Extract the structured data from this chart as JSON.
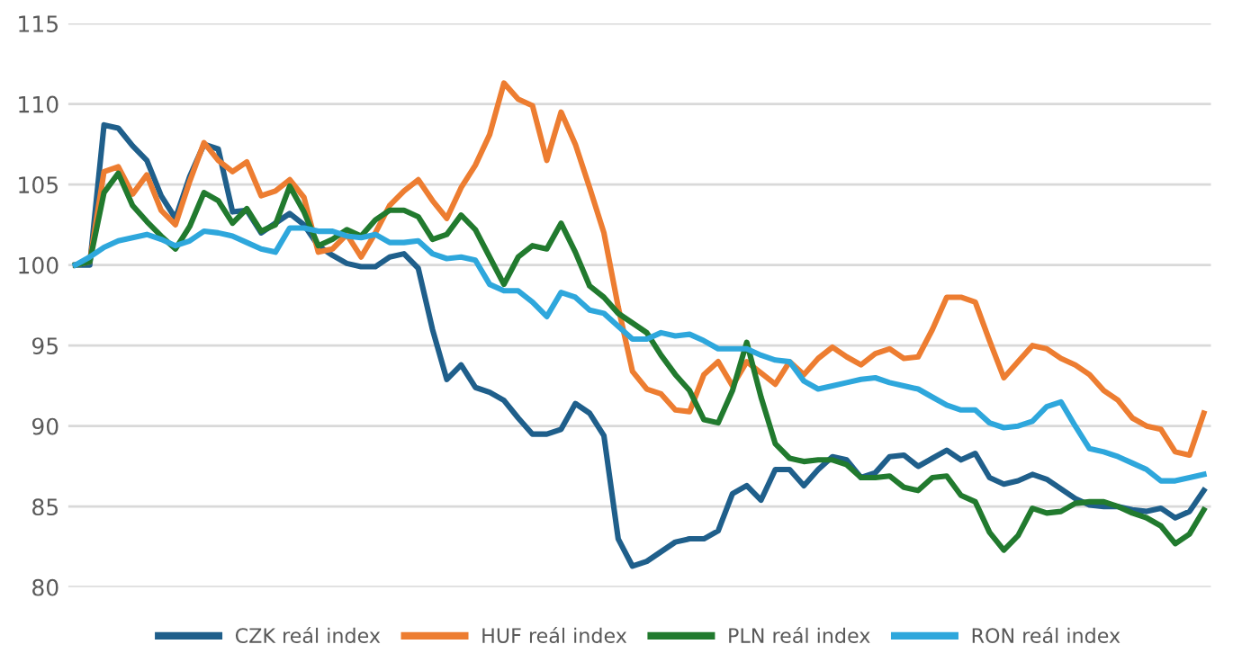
{
  "chart_data": {
    "type": "line",
    "categories": [
      null,
      null,
      null,
      null,
      null,
      null,
      null,
      null,
      null,
      null,
      null,
      null,
      null,
      null,
      null,
      null,
      null,
      null,
      null,
      null,
      null,
      null,
      null,
      null,
      null,
      null,
      null,
      null,
      null,
      null,
      null,
      null,
      null,
      null,
      null,
      null,
      null,
      null,
      null,
      null,
      null,
      null,
      null,
      null,
      null,
      null,
      null,
      null,
      null,
      null,
      null,
      null,
      null,
      null,
      null,
      null,
      null,
      null,
      null,
      null,
      null,
      null,
      null,
      null,
      null,
      null,
      null,
      null,
      null,
      null,
      null,
      null,
      null,
      null,
      null,
      null,
      null,
      null,
      null,
      null
    ],
    "series": [
      {
        "name": "CZK reál index",
        "color": "#1f5f8b",
        "values": [
          100,
          100,
          108.7,
          108.5,
          107.4,
          106.5,
          104.3,
          102.9,
          105.5,
          107.5,
          107.2,
          103.3,
          103.4,
          102.0,
          102.6,
          103.2,
          102.5,
          101.2,
          100.6,
          100.1,
          99.9,
          99.9,
          100.5,
          100.7,
          99.8,
          96.0,
          92.9,
          93.8,
          92.4,
          92.1,
          91.6,
          90.5,
          89.5,
          89.5,
          89.8,
          91.4,
          90.8,
          89.4,
          83.0,
          81.3,
          81.6,
          82.2,
          82.8,
          83.0,
          83.0,
          83.5,
          85.8,
          86.3,
          85.4,
          87.3,
          87.3,
          86.3,
          87.3,
          88.1,
          87.9,
          86.8,
          87.1,
          88.1,
          88.2,
          87.5,
          88.0,
          88.5,
          87.9,
          88.3,
          86.8,
          86.4,
          86.6,
          87.0,
          86.7,
          86.1,
          85.5,
          85.1,
          85.0,
          85.0,
          84.8,
          84.7,
          84.9,
          84.3,
          84.7,
          86.0
        ]
      },
      {
        "name": "HUF reál index",
        "color": "#ed7d31",
        "values": [
          100,
          100.2,
          105.8,
          106.1,
          104.4,
          105.6,
          103.4,
          102.5,
          105.2,
          107.6,
          106.5,
          105.8,
          106.4,
          104.3,
          104.6,
          105.3,
          104.2,
          100.8,
          101.0,
          101.9,
          100.5,
          102.0,
          103.7,
          104.6,
          105.3,
          104.0,
          102.9,
          104.8,
          106.2,
          108.1,
          111.3,
          110.3,
          109.9,
          106.5,
          109.5,
          107.5,
          104.8,
          102.0,
          97.4,
          93.4,
          92.3,
          92.0,
          91.0,
          90.9,
          93.2,
          94.0,
          92.5,
          94.0,
          93.3,
          92.6,
          94.0,
          93.2,
          94.2,
          94.9,
          94.3,
          93.8,
          94.5,
          94.8,
          94.2,
          94.3,
          96.0,
          98.0,
          98.0,
          97.7,
          95.3,
          93.0,
          94.0,
          95.0,
          94.8,
          94.2,
          93.8,
          93.2,
          92.2,
          91.6,
          90.5,
          90.0,
          89.8,
          88.4,
          88.2,
          90.8
        ]
      },
      {
        "name": "PLN reál index",
        "color": "#217a2e",
        "values": [
          100,
          100.2,
          104.5,
          105.7,
          103.7,
          102.7,
          101.8,
          101.0,
          102.4,
          104.5,
          104.0,
          102.6,
          103.5,
          102.1,
          102.5,
          104.9,
          103.3,
          101.2,
          101.6,
          102.2,
          101.8,
          102.8,
          103.4,
          103.4,
          103.0,
          101.6,
          101.9,
          103.1,
          102.2,
          100.5,
          98.8,
          100.5,
          101.2,
          101.0,
          102.6,
          100.8,
          98.7,
          98.0,
          97.0,
          96.4,
          95.8,
          94.4,
          93.2,
          92.2,
          90.4,
          90.2,
          92.2,
          95.2,
          91.8,
          88.9,
          88.0,
          87.8,
          87.9,
          87.9,
          87.6,
          86.8,
          86.8,
          86.9,
          86.2,
          86.0,
          86.8,
          86.9,
          85.7,
          85.3,
          83.4,
          82.3,
          83.2,
          84.9,
          84.6,
          84.7,
          85.2,
          85.3,
          85.3,
          85.0,
          84.6,
          84.3,
          83.8,
          82.7,
          83.3,
          84.8
        ]
      },
      {
        "name": "RON reál index",
        "color": "#2ea7dc",
        "values": [
          100.0,
          100.5,
          101.1,
          101.5,
          101.7,
          101.9,
          101.6,
          101.2,
          101.5,
          102.1,
          102.0,
          101.8,
          101.4,
          101.0,
          100.8,
          102.3,
          102.3,
          102.1,
          102.1,
          101.8,
          101.7,
          101.9,
          101.4,
          101.4,
          101.5,
          100.7,
          100.4,
          100.5,
          100.3,
          98.8,
          98.4,
          98.4,
          97.7,
          96.8,
          98.3,
          98.0,
          97.2,
          97.0,
          96.2,
          95.4,
          95.4,
          95.8,
          95.6,
          95.7,
          95.3,
          94.8,
          94.8,
          94.8,
          94.4,
          94.1,
          94.0,
          92.8,
          92.3,
          92.5,
          92.7,
          92.9,
          93.0,
          92.7,
          92.5,
          92.3,
          91.8,
          91.3,
          91.0,
          91.0,
          90.2,
          89.9,
          90.0,
          90.3,
          91.2,
          91.5,
          90.0,
          88.6,
          88.4,
          88.1,
          87.7,
          87.3,
          86.6,
          86.6,
          86.8,
          87.0
        ]
      }
    ],
    "ylim": [
      80,
      115
    ],
    "yticks": [
      80,
      85,
      90,
      95,
      100,
      105,
      110,
      115
    ],
    "grid": "y",
    "legend": "bottom",
    "tick_labels": "y",
    "marker": "none",
    "line_style": "solid"
  }
}
